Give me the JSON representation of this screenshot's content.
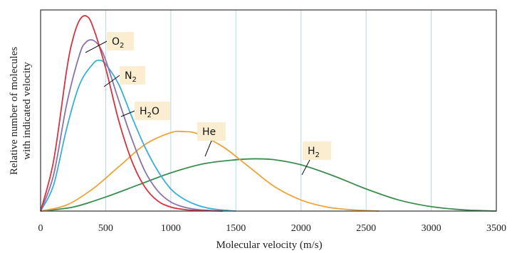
{
  "chart_data": {
    "type": "line",
    "title": "",
    "xlabel": "Molecular velocity (m/s)",
    "ylabel_line1": "Relative number of molecules",
    "ylabel_line2": "with indicated velocity",
    "xlim": [
      0,
      3500
    ],
    "ylim": [
      0,
      1.0
    ],
    "x_ticks": [
      "0",
      "500",
      "1000",
      "1500",
      "2000",
      "2500",
      "3000",
      "3500"
    ],
    "grid": "vertical",
    "series": [
      {
        "name": "O",
        "subscript": "2",
        "color": "#d9323f",
        "x": [
          0,
          100,
          200,
          250,
          300,
          350,
          400,
          500,
          600,
          700,
          800,
          900,
          1000,
          1100,
          1200,
          1400
        ],
        "y": [
          0,
          0.25,
          0.7,
          0.86,
          0.95,
          0.97,
          0.92,
          0.71,
          0.45,
          0.25,
          0.12,
          0.05,
          0.02,
          0.008,
          0.003,
          0
        ]
      },
      {
        "name": "N",
        "subscript": "2",
        "color": "#8a73a8",
        "x": [
          0,
          100,
          200,
          300,
          350,
          400,
          450,
          500,
          600,
          700,
          800,
          900,
          1000,
          1100,
          1200,
          1300,
          1400
        ],
        "y": [
          0,
          0.18,
          0.53,
          0.78,
          0.84,
          0.85,
          0.82,
          0.75,
          0.55,
          0.36,
          0.2,
          0.1,
          0.045,
          0.02,
          0.008,
          0.003,
          0
        ]
      },
      {
        "name": "H",
        "subscript": "2",
        "suffix": "O",
        "color": "#3aaed8",
        "x": [
          0,
          100,
          200,
          300,
          400,
          450,
          500,
          600,
          700,
          800,
          900,
          1000,
          1100,
          1200,
          1300,
          1400,
          1500
        ],
        "y": [
          0,
          0.13,
          0.41,
          0.63,
          0.73,
          0.75,
          0.73,
          0.63,
          0.47,
          0.32,
          0.2,
          0.11,
          0.06,
          0.03,
          0.013,
          0.005,
          0
        ]
      },
      {
        "name": "He",
        "color": "#eda33a",
        "x": [
          0,
          200,
          400,
          600,
          800,
          1000,
          1100,
          1200,
          1400,
          1600,
          1800,
          2000,
          2200,
          2400,
          2600
        ],
        "y": [
          0,
          0.03,
          0.11,
          0.22,
          0.33,
          0.39,
          0.395,
          0.385,
          0.32,
          0.22,
          0.12,
          0.055,
          0.02,
          0.006,
          0
        ]
      },
      {
        "name": "H",
        "subscript": "2",
        "color": "#3a8d4f",
        "x": [
          0,
          250,
          500,
          750,
          1000,
          1250,
          1500,
          1650,
          1800,
          2000,
          2250,
          2500,
          2750,
          3000,
          3250,
          3500
        ],
        "y": [
          0,
          0.02,
          0.07,
          0.13,
          0.19,
          0.235,
          0.255,
          0.26,
          0.255,
          0.23,
          0.175,
          0.11,
          0.055,
          0.022,
          0.006,
          0
        ]
      }
    ]
  }
}
